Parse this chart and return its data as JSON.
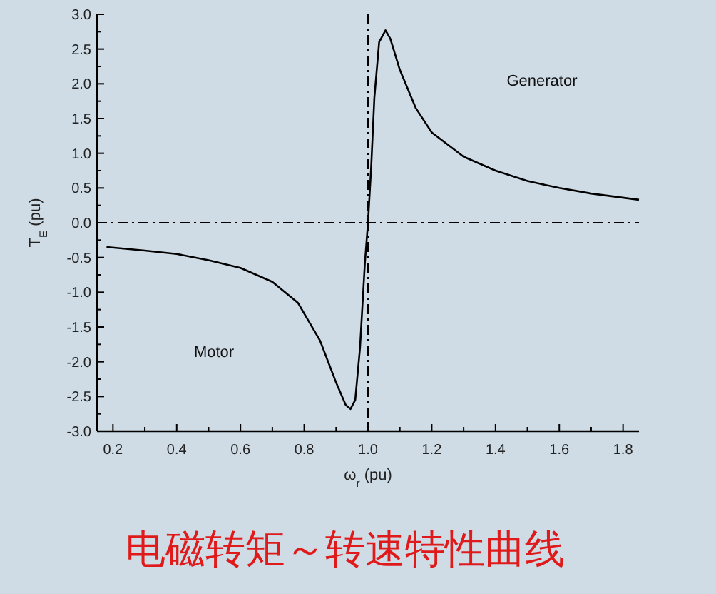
{
  "chart_data": {
    "type": "line",
    "title": "电磁转矩～转速特性曲线",
    "xlabel": "ω$_{r}$   (pu)",
    "ylabel": "T$_{E}$   (pu)",
    "x": [
      0.18,
      0.3,
      0.4,
      0.5,
      0.6,
      0.7,
      0.78,
      0.85,
      0.9,
      0.93,
      0.945,
      0.96,
      0.975,
      0.99,
      1.0,
      1.01,
      1.02,
      1.035,
      1.055,
      1.07,
      1.1,
      1.15,
      1.2,
      1.3,
      1.4,
      1.5,
      1.6,
      1.7,
      1.85
    ],
    "series": [
      {
        "color": "#000000",
        "values": [
          -0.35,
          -0.4,
          -0.45,
          -0.54,
          -0.65,
          -0.85,
          -1.15,
          -1.7,
          -2.3,
          -2.62,
          -2.68,
          -2.55,
          -1.8,
          -0.6,
          0.0,
          0.8,
          1.8,
          2.6,
          2.77,
          2.65,
          2.2,
          1.65,
          1.3,
          0.95,
          0.75,
          0.6,
          0.5,
          0.42,
          0.33
        ]
      }
    ],
    "xlim": [
      0.15,
      1.85
    ],
    "ylim": [
      -3.0,
      3.0
    ],
    "xticks": [
      0.2,
      {
        "value": 0.3,
        "label": null
      },
      0.4,
      {
        "value": 0.5,
        "label": null
      },
      0.6,
      {
        "value": 0.7,
        "label": null
      },
      0.8,
      {
        "value": 0.9,
        "label": null
      },
      {
        "value": 1.0,
        "label": "1.0"
      },
      {
        "value": 1.1,
        "label": null
      },
      1.2,
      {
        "value": 1.3,
        "label": null
      },
      1.4,
      {
        "value": 1.5,
        "label": null
      },
      1.6,
      {
        "value": 1.7,
        "label": null
      },
      1.8
    ],
    "yticks": [
      {
        "value": -3,
        "label": "-3.0"
      },
      {
        "value": -2.75,
        "label": null
      },
      {
        "value": -2.5,
        "label": "-2.5"
      },
      {
        "value": -2.25,
        "label": null
      },
      {
        "value": -2,
        "label": "-2.0"
      },
      {
        "value": -1.75,
        "label": null
      },
      {
        "value": -1.5,
        "label": "-1.5"
      },
      {
        "value": -1.25,
        "label": null
      },
      {
        "value": -1,
        "label": "-1.0"
      },
      {
        "value": -0.75,
        "label": null
      },
      {
        "value": -0.5,
        "label": "-0.5"
      },
      {
        "value": -0.25,
        "label": null
      },
      {
        "value": 0,
        "label": "0.0"
      },
      {
        "value": 0.25,
        "label": null
      },
      {
        "value": 0.5,
        "label": "0.5"
      },
      {
        "value": 0.75,
        "label": null
      },
      {
        "value": 1,
        "label": "1.0"
      },
      {
        "value": 1.25,
        "label": null
      },
      {
        "value": 1.5,
        "label": "1.5"
      },
      {
        "value": 1.75,
        "label": null
      },
      {
        "value": 2,
        "label": "2.0"
      },
      {
        "value": 2.25,
        "label": null
      },
      {
        "value": 2.5,
        "label": "2.5"
      },
      {
        "value": 2.75,
        "label": null
      },
      {
        "value": 3,
        "label": "3.0"
      }
    ],
    "ref_lines": [
      {
        "axis": "x",
        "value": 1.0,
        "line_style": "dashdot"
      },
      {
        "axis": "y",
        "value": 0.0,
        "line_style": "dashdot"
      }
    ],
    "annotations": [
      "Motor",
      "Generator"
    ],
    "grid": false,
    "line_style": "solid",
    "marker": "none"
  }
}
